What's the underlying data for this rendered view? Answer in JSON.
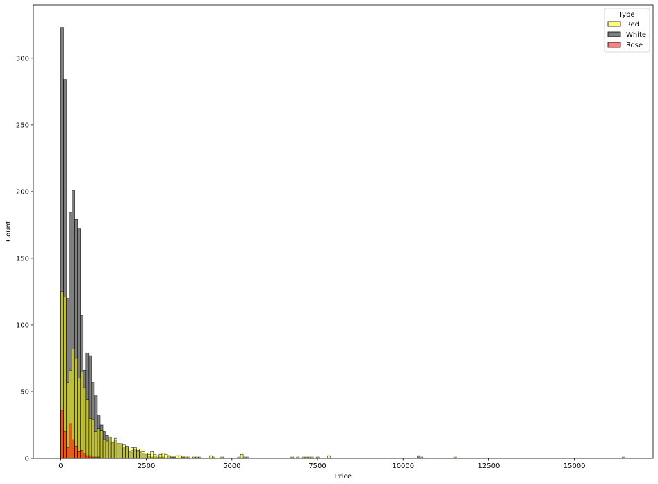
{
  "chart_data": {
    "type": "histogram",
    "xlabel": "Price",
    "ylabel": "Count",
    "xlim": [
      -800,
      17300
    ],
    "ylim": [
      0,
      340
    ],
    "xticks": [
      0,
      2500,
      5000,
      7500,
      10000,
      12500,
      15000
    ],
    "yticks": [
      0,
      50,
      100,
      150,
      200,
      250,
      300
    ],
    "bin_width": 82,
    "bin_start": 0,
    "grid": false,
    "legend": {
      "title": "Type",
      "position": "top-right"
    },
    "series": [
      {
        "name": "Red",
        "color": "#ffff00",
        "opacity": 0.5,
        "counts": [
          125,
          121,
          57,
          66,
          82,
          75,
          60,
          65,
          53,
          44,
          30,
          29,
          20,
          22,
          21,
          14,
          13,
          16,
          12,
          15,
          11,
          11,
          10,
          9,
          7,
          8,
          8,
          6,
          7,
          5,
          4,
          3,
          5,
          3,
          2,
          3,
          4,
          3,
          2,
          1,
          1,
          2,
          2,
          1,
          1,
          1,
          0,
          1,
          1,
          1,
          0,
          0,
          0,
          2,
          1,
          0,
          0,
          1,
          0,
          0,
          0,
          0,
          0,
          1,
          3,
          1,
          1,
          0,
          0,
          0,
          0,
          0,
          0,
          0,
          0,
          0,
          0,
          0,
          0,
          0,
          0,
          0,
          1,
          0,
          1,
          0,
          1,
          1,
          1,
          1,
          0,
          1,
          0,
          0,
          0,
          2,
          0,
          0,
          0,
          0,
          0,
          0,
          0,
          0,
          0,
          0,
          0,
          0,
          0,
          0,
          0,
          0,
          0,
          0,
          0,
          0,
          0,
          0,
          0,
          0,
          0,
          0,
          0,
          0,
          0,
          0,
          0,
          0,
          1,
          0,
          0,
          0,
          0,
          0,
          0,
          0,
          0,
          0,
          0,
          0,
          1,
          0,
          0,
          0,
          0,
          0,
          0,
          0,
          0,
          0,
          0,
          0,
          0,
          0,
          0,
          0,
          0,
          0,
          0,
          0,
          0,
          0,
          0,
          0,
          0,
          0,
          0,
          0,
          0,
          0,
          0,
          0,
          0,
          0,
          0,
          0,
          0,
          0,
          0,
          0,
          0,
          0,
          0,
          0,
          0,
          0,
          0,
          0,
          0,
          0,
          0,
          0,
          0,
          0,
          0,
          0,
          0,
          0,
          0,
          0,
          1
        ]
      },
      {
        "name": "White",
        "color": "#000000",
        "opacity": 0.5,
        "counts": [
          323,
          284,
          120,
          184,
          201,
          179,
          172,
          107,
          66,
          79,
          77,
          57,
          47,
          32,
          25,
          20,
          17,
          16,
          12,
          14,
          11,
          10,
          8,
          9,
          5,
          6,
          7,
          5,
          5,
          4,
          3,
          2,
          1,
          2,
          1,
          1,
          1,
          0,
          2,
          1,
          1,
          0,
          0,
          1,
          0,
          0,
          0,
          0,
          0,
          0,
          0,
          0,
          0,
          0,
          0,
          0,
          0,
          0,
          0,
          0,
          0,
          0,
          0,
          0,
          0,
          0,
          0,
          0,
          0,
          0,
          0,
          0,
          0,
          0,
          0,
          0,
          0,
          0,
          0,
          0,
          0,
          0,
          0,
          0,
          0,
          0,
          0,
          0,
          0,
          0,
          0,
          0,
          0,
          0,
          0,
          0,
          0,
          0,
          0,
          0,
          0,
          0,
          0,
          0,
          0,
          0,
          0,
          0,
          0,
          0,
          0,
          0,
          0,
          0,
          0,
          0,
          0,
          0,
          0,
          0,
          0,
          0,
          0,
          0,
          0,
          0,
          0,
          2,
          0,
          0,
          0,
          0,
          0,
          0,
          0,
          0,
          0,
          0,
          0,
          0,
          0,
          0,
          0,
          0,
          0,
          0,
          0,
          0,
          0,
          0,
          0,
          0,
          0,
          0,
          0,
          0,
          0,
          0,
          0,
          0,
          0,
          0,
          0,
          0,
          0,
          0,
          0,
          0,
          0,
          0,
          0,
          0,
          0,
          0,
          0,
          0,
          0,
          0,
          0,
          0,
          0,
          0,
          0,
          0,
          0,
          0,
          0,
          0,
          0,
          0,
          0,
          0,
          0,
          0,
          0,
          0,
          0,
          0,
          0,
          0,
          0,
          0,
          0,
          0,
          0
        ]
      },
      {
        "name": "Rose",
        "color": "#ff0000",
        "opacity": 0.5,
        "counts": [
          36,
          20,
          8,
          26,
          14,
          9,
          5,
          6,
          4,
          2,
          2,
          1,
          1,
          1,
          0,
          0,
          0,
          0,
          0,
          0,
          0,
          0,
          0,
          0,
          0,
          0,
          0,
          0,
          0,
          0,
          0,
          0,
          0,
          0,
          0,
          0,
          0,
          0,
          0,
          0,
          0,
          0,
          0,
          0,
          0,
          0,
          0,
          0,
          0,
          0,
          0,
          0,
          0,
          0,
          0,
          0,
          0,
          0,
          0,
          0,
          0,
          0,
          0,
          0,
          0,
          0,
          0,
          0,
          0,
          0,
          0,
          0,
          0,
          0,
          0,
          0,
          0,
          0,
          0,
          0,
          0,
          0,
          0,
          0,
          0,
          0,
          0,
          0,
          0,
          0,
          0,
          0,
          0,
          0,
          0,
          0,
          0,
          0,
          0,
          0,
          0,
          0,
          0,
          0,
          0,
          0,
          0,
          0,
          0,
          0,
          0,
          0,
          0,
          0,
          0,
          0,
          0,
          0,
          0,
          0,
          0,
          0,
          0,
          0,
          0,
          0,
          0,
          0,
          0,
          0,
          0,
          0,
          0,
          0,
          0,
          0,
          0,
          0,
          0,
          0,
          0,
          0,
          0,
          0,
          0,
          0,
          0,
          0,
          0,
          0,
          0,
          0,
          0,
          0,
          0,
          0,
          0,
          0,
          0,
          0,
          0,
          0,
          0,
          0,
          0,
          0,
          0,
          0,
          0,
          0,
          0,
          0,
          0,
          0,
          0,
          0,
          0,
          0,
          0,
          0,
          0,
          0,
          0,
          0,
          0,
          0,
          0,
          0,
          0,
          0,
          0,
          0,
          0,
          0,
          0,
          0,
          0,
          0,
          0,
          0,
          0,
          0,
          0,
          0,
          0
        ]
      }
    ]
  }
}
